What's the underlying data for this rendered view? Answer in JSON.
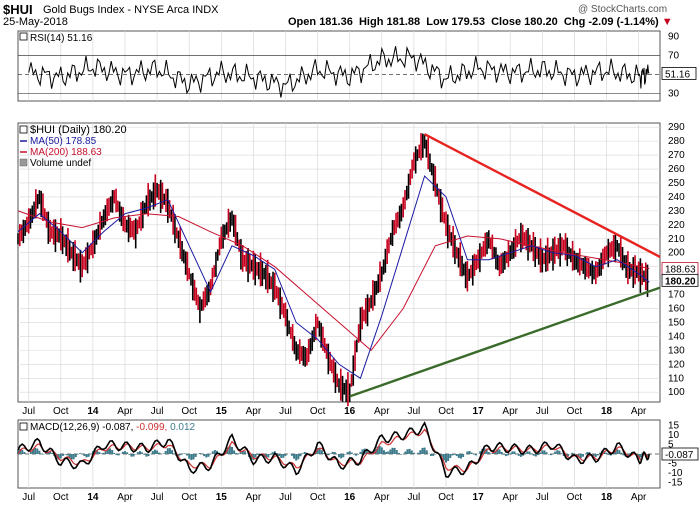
{
  "header": {
    "ticker": "$HUI",
    "name": "Gold Bugs Index - NYSE Arca",
    "exchange": "INDX",
    "date": "25-May-2018",
    "quote": {
      "open": "181.36",
      "high": "181.88",
      "low": "179.53",
      "close": "180.20",
      "chg": "-2.09 (-1.14%)"
    },
    "labels": {
      "open": "Open",
      "high": "High",
      "low": "Low",
      "close": "Close",
      "chg": "Chg"
    },
    "watermark": "@ StockCharts.com",
    "down_arrow": "▼"
  },
  "colors": {
    "price_up": "#000000",
    "price_down": "#c8001e",
    "ma50": "#1a1aa0",
    "ma200": "#c8102e",
    "resistance": "#e8231f",
    "support": "#3b6b2a",
    "rsi_line": "#000000",
    "macd_line": "#000000",
    "signal_line": "#d03030",
    "histogram": "#3d7a8a",
    "grid": "#d8d8d8"
  },
  "chart_data": [
    {
      "type": "line",
      "panel": "rsi",
      "legend": "RSI(14) 51.16",
      "current_value_label": "51.16",
      "y_ticks": [
        30,
        50,
        70,
        90
      ],
      "ylim": [
        22,
        96
      ],
      "reference_lines": [
        30,
        50,
        70
      ],
      "x": [
        "2013-07",
        "2013-10",
        "2014-01",
        "2014-04",
        "2014-07",
        "2014-10",
        "2015-01",
        "2015-04",
        "2015-07",
        "2015-10",
        "2016-01",
        "2016-04",
        "2016-07",
        "2016-10",
        "2017-01",
        "2017-04",
        "2017-07",
        "2017-10",
        "2018-01",
        "2018-04",
        "2018-05"
      ],
      "values": [
        52,
        47,
        58,
        50,
        56,
        40,
        52,
        47,
        38,
        55,
        48,
        66,
        68,
        45,
        57,
        52,
        55,
        49,
        54,
        48,
        51.16
      ]
    },
    {
      "type": "line",
      "panel": "price",
      "title": "$HUI (Daily) 180.20",
      "legend": [
        {
          "name": "$HUI (Daily)",
          "value": "180.20"
        },
        {
          "name": "MA(50)",
          "value": "178.85"
        },
        {
          "name": "MA(200)",
          "value": "188.63"
        },
        {
          "name": "Volume",
          "value": "undef"
        }
      ],
      "right_labels": {
        "ma200": "188.63",
        "close": "180.20"
      },
      "y_ticks": [
        100,
        110,
        120,
        130,
        140,
        150,
        160,
        170,
        180,
        190,
        200,
        210,
        220,
        230,
        240,
        250,
        260,
        270,
        280,
        290
      ],
      "ylim": [
        93,
        293
      ],
      "x_ticks": [
        "Jul",
        "Oct",
        "14",
        "Apr",
        "Jul",
        "Oct",
        "15",
        "Apr",
        "Jul",
        "Oct",
        "16",
        "Apr",
        "Jul",
        "Oct",
        "17",
        "Apr",
        "Jul",
        "Oct",
        "18",
        "Apr"
      ],
      "x_tick_dates": [
        "2013-07",
        "2013-10",
        "2014-01",
        "2014-04",
        "2014-07",
        "2014-10",
        "2015-01",
        "2015-04",
        "2015-07",
        "2015-10",
        "2016-01",
        "2016-04",
        "2016-07",
        "2016-10",
        "2017-01",
        "2017-04",
        "2017-07",
        "2017-10",
        "2018-01",
        "2018-04"
      ],
      "x_range": [
        "2013-06",
        "2018-06"
      ],
      "series": [
        {
          "name": "$HUI (Daily)",
          "x": [
            "2013-06",
            "2013-07",
            "2013-08",
            "2013-09",
            "2013-10",
            "2013-11",
            "2013-12",
            "2014-01",
            "2014-02",
            "2014-03",
            "2014-04",
            "2014-05",
            "2014-06",
            "2014-07",
            "2014-08",
            "2014-09",
            "2014-10",
            "2014-11",
            "2014-12",
            "2015-01",
            "2015-02",
            "2015-03",
            "2015-04",
            "2015-05",
            "2015-06",
            "2015-07",
            "2015-08",
            "2015-09",
            "2015-10",
            "2015-11",
            "2015-12",
            "2016-01",
            "2016-02",
            "2016-03",
            "2016-04",
            "2016-05",
            "2016-06",
            "2016-07",
            "2016-08",
            "2016-09",
            "2016-10",
            "2016-11",
            "2016-12",
            "2017-01",
            "2017-02",
            "2017-03",
            "2017-04",
            "2017-05",
            "2017-06",
            "2017-07",
            "2017-08",
            "2017-09",
            "2017-10",
            "2017-11",
            "2017-12",
            "2018-01",
            "2018-02",
            "2018-03",
            "2018-04",
            "2018-05"
          ],
          "values": [
            210,
            222,
            240,
            215,
            212,
            200,
            190,
            205,
            225,
            240,
            220,
            215,
            235,
            245,
            235,
            210,
            185,
            160,
            175,
            210,
            225,
            195,
            190,
            185,
            175,
            155,
            130,
            125,
            150,
            125,
            105,
            100,
            150,
            165,
            185,
            215,
            232,
            265,
            280,
            250,
            220,
            200,
            182,
            195,
            210,
            190,
            200,
            212,
            205,
            195,
            200,
            205,
            195,
            190,
            185,
            200,
            205,
            188,
            186,
            180.2
          ]
        },
        {
          "name": "MA(50)",
          "x": [
            "2013-06",
            "2013-08",
            "2013-10",
            "2013-12",
            "2014-02",
            "2014-04",
            "2014-06",
            "2014-08",
            "2014-10",
            "2014-12",
            "2015-02",
            "2015-04",
            "2015-06",
            "2015-08",
            "2015-10",
            "2015-12",
            "2016-02",
            "2016-04",
            "2016-06",
            "2016-08",
            "2016-10",
            "2016-12",
            "2017-02",
            "2017-04",
            "2017-06",
            "2017-08",
            "2017-10",
            "2017-12",
            "2018-02",
            "2018-04",
            "2018-05"
          ],
          "values": [
            215,
            228,
            215,
            200,
            215,
            228,
            232,
            238,
            205,
            172,
            205,
            198,
            188,
            150,
            138,
            120,
            110,
            155,
            205,
            255,
            240,
            195,
            195,
            200,
            205,
            200,
            198,
            190,
            195,
            185,
            178.85
          ]
        },
        {
          "name": "MA(200)",
          "x": [
            "2013-06",
            "2013-09",
            "2013-12",
            "2014-03",
            "2014-06",
            "2014-09",
            "2014-12",
            "2015-03",
            "2015-06",
            "2015-09",
            "2015-12",
            "2016-03",
            "2016-06",
            "2016-09",
            "2016-12",
            "2017-03",
            "2017-06",
            "2017-09",
            "2017-12",
            "2018-03",
            "2018-05"
          ],
          "values": [
            230,
            222,
            218,
            225,
            228,
            226,
            215,
            205,
            190,
            170,
            150,
            130,
            160,
            205,
            212,
            210,
            205,
            200,
            196,
            192,
            188.63
          ]
        }
      ],
      "trendlines": [
        {
          "name": "resistance",
          "points": [
            [
              "2016-08",
              285
            ],
            [
              "2018-06",
              197
            ]
          ]
        },
        {
          "name": "support",
          "points": [
            [
              "2016-01",
              97
            ],
            [
              "2018-06",
              175
            ]
          ]
        }
      ]
    },
    {
      "type": "line",
      "panel": "macd",
      "legend": "MACD(12,26,9) -0.087, -0.099, 0.012",
      "legend_parts": {
        "macd": "MACD(12,26,9)",
        "v1": "-0.087",
        "v2": "-0.099",
        "v3": "0.012"
      },
      "current_value_label": "-0.087",
      "y_ticks": [
        -15,
        -10,
        -5,
        0,
        5,
        10,
        15
      ],
      "ylim": [
        -18,
        18
      ],
      "x": [
        "2013-06",
        "2013-08",
        "2013-10",
        "2013-12",
        "2014-02",
        "2014-04",
        "2014-06",
        "2014-08",
        "2014-10",
        "2014-12",
        "2015-02",
        "2015-04",
        "2015-06",
        "2015-08",
        "2015-10",
        "2015-12",
        "2016-02",
        "2016-04",
        "2016-06",
        "2016-08",
        "2016-10",
        "2016-12",
        "2017-02",
        "2017-04",
        "2017-06",
        "2017-08",
        "2017-10",
        "2017-12",
        "2018-02",
        "2018-04",
        "2018-05"
      ],
      "series": [
        {
          "name": "MACD",
          "values": [
            2,
            6,
            -4,
            -6,
            5,
            4,
            3,
            7,
            -8,
            -6,
            8,
            -3,
            -2,
            -9,
            5,
            -6,
            -3,
            8,
            10,
            14,
            -10,
            -8,
            4,
            3,
            2,
            5,
            -3,
            -2,
            4,
            -3,
            -0.087
          ]
        },
        {
          "name": "Signal",
          "values": [
            1,
            4,
            -2,
            -5,
            3,
            4,
            3,
            5,
            -6,
            -6,
            5,
            -1,
            -2,
            -7,
            3,
            -5,
            -4,
            5,
            9,
            12,
            -7,
            -8,
            2,
            3,
            2,
            4,
            -2,
            -2,
            3,
            -2,
            -0.099
          ]
        }
      ],
      "x_ticks": [
        "Jul",
        "Oct",
        "14",
        "Apr",
        "Jul",
        "Oct",
        "15",
        "Apr",
        "Jul",
        "Oct",
        "16",
        "Apr",
        "Jul",
        "Oct",
        "17",
        "Apr",
        "Jul",
        "Oct",
        "18",
        "Apr"
      ]
    }
  ]
}
